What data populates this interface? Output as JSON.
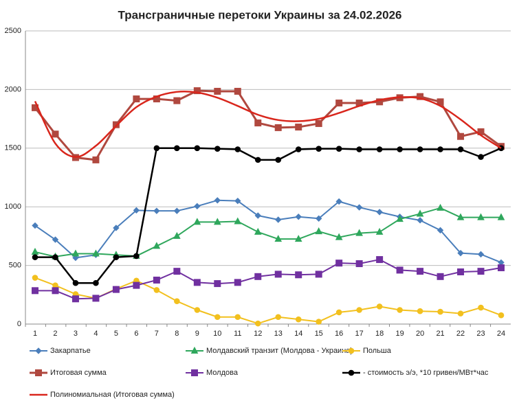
{
  "chart_data": {
    "type": "line",
    "title": "Трансграничные перетоки Украины за 24.02.2026",
    "categories": [
      "1",
      "2",
      "3",
      "4",
      "5",
      "6",
      "7",
      "8",
      "9",
      "10",
      "11",
      "12",
      "13",
      "14",
      "15",
      "16",
      "17",
      "18",
      "19",
      "20",
      "21",
      "22",
      "23",
      "24"
    ],
    "ylim": [
      0,
      2500
    ],
    "yticks": [
      0,
      500,
      1000,
      1500,
      2000,
      2500
    ],
    "grid": true,
    "series": [
      {
        "name": "Закарпатье",
        "color": "#4a7ebb",
        "marker": "diamond",
        "line_width": 2,
        "values": [
          840,
          720,
          565,
          590,
          820,
          970,
          965,
          965,
          1005,
          1055,
          1050,
          925,
          890,
          915,
          900,
          1045,
          995,
          955,
          915,
          885,
          800,
          605,
          595,
          525
        ]
      },
      {
        "name": "Молдавский транзит (Молдова - Украина)",
        "color": "#2fa75c",
        "marker": "triangle",
        "line_width": 2,
        "values": [
          615,
          575,
          600,
          600,
          590,
          580,
          665,
          750,
          870,
          870,
          875,
          785,
          725,
          725,
          790,
          740,
          775,
          785,
          895,
          940,
          990,
          910,
          910,
          910
        ]
      },
      {
        "name": "Польша",
        "color": "#f2c01e",
        "marker": "circle",
        "line_width": 2,
        "values": [
          395,
          330,
          255,
          220,
          300,
          370,
          290,
          195,
          120,
          60,
          60,
          5,
          60,
          40,
          20,
          100,
          120,
          150,
          120,
          110,
          105,
          90,
          140,
          75
        ]
      },
      {
        "name": "Итоговая сумма",
        "color": "#b0483f",
        "marker": "square",
        "line_width": 3,
        "values": [
          1845,
          1620,
          1420,
          1400,
          1700,
          1920,
          1920,
          1905,
          1990,
          1985,
          1985,
          1715,
          1675,
          1680,
          1710,
          1885,
          1885,
          1895,
          1930,
          1940,
          1895,
          1600,
          1640,
          1515
        ]
      },
      {
        "name": "Молдова",
        "color": "#7030a0",
        "marker": "square",
        "line_width": 2,
        "values": [
          285,
          285,
          215,
          220,
          295,
          330,
          375,
          450,
          355,
          345,
          355,
          405,
          425,
          420,
          425,
          520,
          515,
          550,
          460,
          450,
          405,
          445,
          450,
          480
        ]
      },
      {
        "name": "- стоимость э/э, *10 гривен/МВт*час",
        "color": "#000000",
        "marker": "circle",
        "line_width": 2.5,
        "values": [
          570,
          570,
          350,
          350,
          570,
          580,
          1500,
          1500,
          1500,
          1495,
          1490,
          1400,
          1400,
          1490,
          1495,
          1495,
          1490,
          1490,
          1490,
          1490,
          1490,
          1490,
          1425,
          1500
        ]
      },
      {
        "name": "Полиномиальная (Итоговая сумма)",
        "color": "#d9261c",
        "marker": "none",
        "line_width": 2.5,
        "values": [
          1900,
          1540,
          1425,
          1520,
          1690,
          1850,
          1940,
          1980,
          1975,
          1930,
          1860,
          1785,
          1740,
          1730,
          1750,
          1800,
          1860,
          1910,
          1935,
          1925,
          1860,
          1745,
          1610,
          1500
        ]
      }
    ]
  }
}
